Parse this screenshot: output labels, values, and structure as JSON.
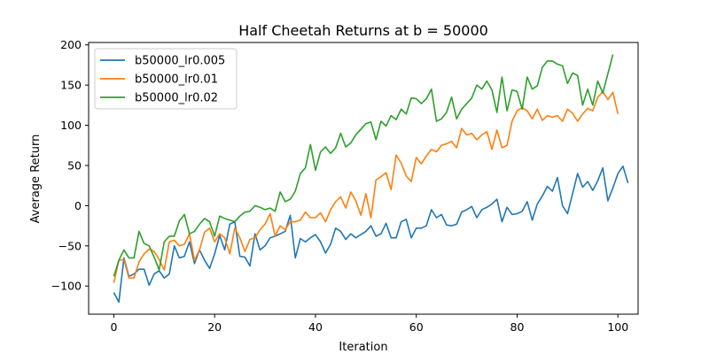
{
  "chart_data": {
    "type": "line",
    "title": "Half Cheetah Returns at b = 50000",
    "xlabel": "Iteration",
    "ylabel": "Average Return",
    "xlim": [
      -5,
      104
    ],
    "ylim": [
      -135,
      203
    ],
    "xticks": [
      0,
      20,
      40,
      60,
      80,
      100
    ],
    "yticks": [
      -100,
      -50,
      0,
      50,
      100,
      150,
      200
    ],
    "grid": false,
    "legend_position": "top-left",
    "series": [
      {
        "name": "b50000_lr0.005",
        "color": "#1f77b4",
        "values": [
          -108,
          -120,
          -65,
          -88,
          -85,
          -79,
          -79,
          -99,
          -85,
          -81,
          -90,
          -85,
          -50,
          -65,
          -63,
          -45,
          -72,
          -55,
          -68,
          -78,
          -60,
          -37,
          -55,
          -23,
          -20,
          -63,
          -64,
          -75,
          -35,
          -55,
          -50,
          -40,
          -38,
          -35,
          -32,
          -12,
          -65,
          -41,
          -45,
          -40,
          -36,
          -45,
          -59,
          -48,
          -28,
          -32,
          -42,
          -35,
          -40,
          -36,
          -32,
          -25,
          -38,
          -35,
          -22,
          -40,
          -40,
          -20,
          -17,
          -40,
          -28,
          -28,
          -25,
          -5,
          -15,
          -11,
          -24,
          -25,
          -23,
          -8,
          -5,
          -1,
          -15,
          -5,
          -2,
          2,
          8,
          -20,
          -2,
          -11,
          -10,
          -7,
          5,
          -18,
          2,
          12,
          24,
          18,
          35,
          0,
          -10,
          15,
          40,
          23,
          30,
          19,
          31,
          47,
          6,
          22,
          40,
          49,
          28
        ]
      },
      {
        "name": "b50000_lr0.01",
        "color": "#ff7f0e",
        "values": [
          -96,
          -68,
          -67,
          -90,
          -90,
          -70,
          -60,
          -54,
          -57,
          -67,
          -80,
          -45,
          -43,
          -50,
          -48,
          -35,
          -68,
          -55,
          -33,
          -28,
          -45,
          -35,
          -40,
          -60,
          -28,
          -40,
          -57,
          -42,
          -40,
          -30,
          -23,
          -10,
          -38,
          -25,
          -30,
          -20,
          -20,
          -18,
          -8,
          -15,
          -15,
          -9,
          -20,
          -5,
          5,
          11,
          -3,
          17,
          6,
          -12,
          15,
          -15,
          32,
          36,
          41,
          20,
          63,
          53,
          37,
          30,
          60,
          52,
          62,
          70,
          67,
          75,
          77,
          80,
          72,
          96,
          88,
          90,
          82,
          88,
          92,
          70,
          94,
          72,
          75,
          105,
          118,
          122,
          118,
          108,
          120,
          106,
          112,
          110,
          112,
          105,
          120,
          115,
          105,
          114,
          121,
          118,
          135,
          142,
          132,
          141,
          114
        ]
      },
      {
        "name": "b50000_lr0.02",
        "color": "#2ca02c",
        "values": [
          -88,
          -68,
          -55,
          -65,
          -65,
          -32,
          -47,
          -50,
          -64,
          -80,
          -45,
          -38,
          -38,
          -19,
          -11,
          -35,
          -32,
          -23,
          -16,
          -20,
          -38,
          -13,
          -16,
          -18,
          -20,
          -13,
          -8,
          -7,
          0,
          -2,
          -5,
          -3,
          -7,
          17,
          5,
          8,
          18,
          40,
          47,
          76,
          44,
          67,
          73,
          65,
          72,
          90,
          73,
          78,
          88,
          95,
          102,
          104,
          82,
          105,
          99,
          112,
          107,
          120,
          114,
          134,
          133,
          127,
          133,
          145,
          105,
          108,
          116,
          135,
          108,
          120,
          127,
          134,
          150,
          145,
          155,
          144,
          116,
          160,
          118,
          144,
          142,
          120,
          160,
          145,
          149,
          172,
          180,
          180,
          176,
          174,
          152,
          165,
          162,
          125,
          145,
          125,
          155,
          140,
          164,
          188
        ]
      }
    ]
  }
}
